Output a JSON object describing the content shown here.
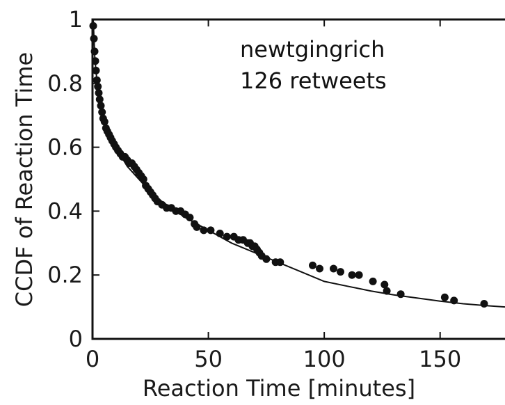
{
  "chart_data": {
    "type": "scatter",
    "title": "",
    "xlabel": "Reaction Time [minutes]",
    "ylabel": "CCDF of Reaction Time",
    "xlim": [
      0,
      178
    ],
    "ylim": [
      0,
      1
    ],
    "x_ticks": [
      "0",
      "50",
      "100",
      "150"
    ],
    "x_tick_values": [
      0,
      50,
      100,
      150
    ],
    "y_ticks": [
      "0",
      "0.2",
      "0.4",
      "0.6",
      "0.8",
      "1"
    ],
    "y_tick_values": [
      0,
      0.2,
      0.4,
      0.6,
      0.8,
      1
    ],
    "grid": false,
    "annotations": [
      "newtgingrich",
      "126 retweets"
    ],
    "colors": {
      "points": "#111111",
      "fit": "#111111",
      "axes": "#111111"
    },
    "series": [
      {
        "kind": "points",
        "x": [
          0.3,
          0.6,
          0.9,
          1.2,
          1.5,
          1.9,
          2.3,
          2.7,
          3.1,
          3.6,
          4.1,
          4.6,
          5.2,
          5.8,
          6.4,
          7.1,
          7.8,
          8.5,
          9.3,
          10.1,
          11,
          12,
          13,
          14,
          15,
          16,
          17,
          18,
          19,
          20,
          21,
          22,
          23,
          24,
          25,
          26,
          27,
          28,
          30,
          32,
          34,
          36,
          38,
          40,
          42,
          44,
          45,
          48,
          51,
          55,
          58,
          61,
          63,
          65,
          67,
          68,
          69,
          70,
          71,
          72,
          73,
          75,
          79,
          81,
          95,
          98,
          104,
          107,
          112,
          115,
          121,
          126,
          127,
          133,
          152,
          156,
          169
        ],
        "y": [
          0.98,
          0.94,
          0.9,
          0.87,
          0.84,
          0.81,
          0.79,
          0.77,
          0.75,
          0.73,
          0.71,
          0.69,
          0.68,
          0.66,
          0.65,
          0.64,
          0.63,
          0.62,
          0.61,
          0.6,
          0.59,
          0.58,
          0.57,
          0.57,
          0.56,
          0.55,
          0.55,
          0.54,
          0.53,
          0.52,
          0.51,
          0.5,
          0.48,
          0.47,
          0.46,
          0.45,
          0.44,
          0.43,
          0.42,
          0.41,
          0.41,
          0.4,
          0.4,
          0.39,
          0.38,
          0.36,
          0.35,
          0.34,
          0.34,
          0.33,
          0.32,
          0.32,
          0.31,
          0.31,
          0.3,
          0.3,
          0.29,
          0.29,
          0.28,
          0.27,
          0.26,
          0.25,
          0.24,
          0.24,
          0.23,
          0.22,
          0.22,
          0.21,
          0.2,
          0.2,
          0.18,
          0.17,
          0.15,
          0.14,
          0.13,
          0.12,
          0.11
        ]
      },
      {
        "kind": "line",
        "x": [
          0.3,
          1,
          2,
          3,
          5,
          7,
          10,
          15,
          20,
          25,
          30,
          40,
          50,
          60,
          70,
          80,
          90,
          100,
          110,
          120,
          130,
          140,
          150,
          160,
          170,
          178
        ],
        "y": [
          1.0,
          0.88,
          0.8,
          0.75,
          0.69,
          0.65,
          0.6,
          0.54,
          0.5,
          0.46,
          0.43,
          0.38,
          0.34,
          0.3,
          0.27,
          0.24,
          0.21,
          0.18,
          0.165,
          0.15,
          0.138,
          0.128,
          0.118,
          0.11,
          0.104,
          0.1
        ]
      }
    ]
  }
}
